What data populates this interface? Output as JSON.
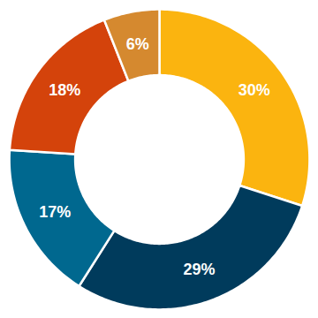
{
  "chart_data": {
    "type": "pie",
    "values": [
      30,
      29,
      17,
      18,
      6
    ],
    "value_labels": [
      "30%",
      "29%",
      "17%",
      "18%",
      "6%"
    ],
    "colors": [
      "#FBB40F",
      "#003B5C",
      "#00688F",
      "#D4430B",
      "#D5892F"
    ],
    "data_labels": true
  }
}
